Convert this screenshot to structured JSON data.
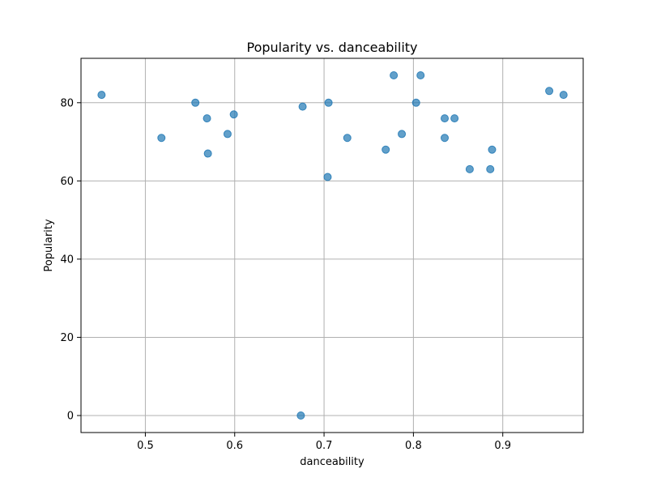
{
  "chart_data": {
    "type": "scatter",
    "title": "Popularity vs. danceability",
    "xlabel": "danceability",
    "ylabel": "Popularity",
    "xlim": [
      0.428,
      0.99
    ],
    "ylim": [
      -4.35,
      91.35
    ],
    "xticks": [
      0.5,
      0.6,
      0.7,
      0.8,
      0.9
    ],
    "yticks": [
      0,
      20,
      40,
      60,
      80
    ],
    "xtick_labels": [
      "0.5",
      "0.6",
      "0.7",
      "0.8",
      "0.9"
    ],
    "ytick_labels": [
      "0",
      "20",
      "40",
      "60",
      "80"
    ],
    "grid": true,
    "marker_color": "#1f77b4",
    "marker_alpha": 0.7,
    "points": [
      {
        "x": 0.451,
        "y": 82
      },
      {
        "x": 0.518,
        "y": 71
      },
      {
        "x": 0.556,
        "y": 80
      },
      {
        "x": 0.569,
        "y": 76
      },
      {
        "x": 0.57,
        "y": 67
      },
      {
        "x": 0.592,
        "y": 72
      },
      {
        "x": 0.599,
        "y": 77
      },
      {
        "x": 0.674,
        "y": 0
      },
      {
        "x": 0.676,
        "y": 79
      },
      {
        "x": 0.704,
        "y": 61
      },
      {
        "x": 0.705,
        "y": 80
      },
      {
        "x": 0.726,
        "y": 71
      },
      {
        "x": 0.769,
        "y": 68
      },
      {
        "x": 0.778,
        "y": 87
      },
      {
        "x": 0.787,
        "y": 72
      },
      {
        "x": 0.803,
        "y": 80
      },
      {
        "x": 0.808,
        "y": 87
      },
      {
        "x": 0.835,
        "y": 76
      },
      {
        "x": 0.835,
        "y": 71
      },
      {
        "x": 0.846,
        "y": 76
      },
      {
        "x": 0.863,
        "y": 63
      },
      {
        "x": 0.886,
        "y": 63
      },
      {
        "x": 0.888,
        "y": 68
      },
      {
        "x": 0.952,
        "y": 83
      },
      {
        "x": 0.968,
        "y": 82
      }
    ]
  }
}
